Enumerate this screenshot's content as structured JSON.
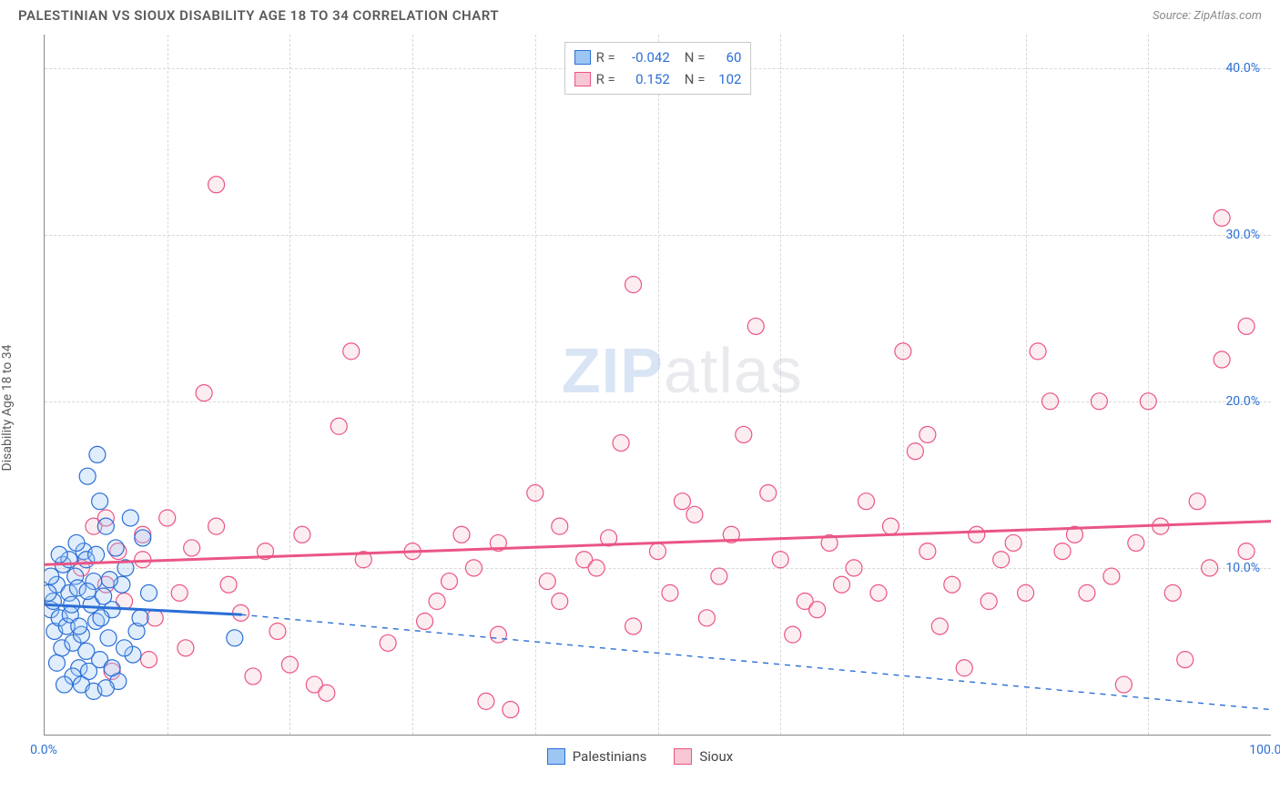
{
  "title": "PALESTINIAN VS SIOUX DISABILITY AGE 18 TO 34 CORRELATION CHART",
  "source": "Source: ZipAtlas.com",
  "y_axis_label": "Disability Age 18 to 34",
  "watermark": {
    "bold": "ZIP",
    "rest": "atlas"
  },
  "chart": {
    "type": "scatter",
    "xlim": [
      0,
      100
    ],
    "ylim": [
      0,
      42
    ],
    "x_ticks": [
      0,
      100
    ],
    "x_tick_labels": [
      "0.0%",
      "100.0%"
    ],
    "y_ticks": [
      10,
      20,
      30,
      40
    ],
    "y_tick_labels": [
      "10.0%",
      "20.0%",
      "30.0%",
      "40.0%"
    ],
    "v_grid": [
      10,
      20,
      30,
      40,
      50,
      60,
      70,
      80,
      90
    ],
    "background_color": "#ffffff",
    "grid_color": "#d8d8d8",
    "axis_color": "#888888",
    "tick_label_color": "#2b6fd6",
    "marker_radius": 9,
    "marker_stroke_width": 1.2,
    "marker_fill_opacity": 0.32,
    "trend_line_width": 3,
    "dash_line_width": 1.4
  },
  "series": [
    {
      "name": "Palestinians",
      "color_fill": "#9ec6f5",
      "color_stroke": "#2b6fd6",
      "trend": {
        "x1": 0,
        "y1": 7.8,
        "x2": 16,
        "y2": 7.2,
        "dash_x2": 100,
        "dash_y2": 1.5
      },
      "points": [
        [
          0.5,
          7.5
        ],
        [
          0.7,
          8.0
        ],
        [
          0.8,
          6.2
        ],
        [
          1.0,
          9.0
        ],
        [
          1.2,
          7.0
        ],
        [
          1.4,
          5.2
        ],
        [
          1.5,
          10.2
        ],
        [
          1.8,
          6.5
        ],
        [
          2.0,
          8.5
        ],
        [
          2.1,
          7.2
        ],
        [
          2.3,
          5.5
        ],
        [
          2.5,
          9.5
        ],
        [
          2.7,
          8.8
        ],
        [
          2.8,
          4.0
        ],
        [
          3.0,
          6.0
        ],
        [
          3.2,
          11.0
        ],
        [
          3.4,
          10.5
        ],
        [
          3.6,
          3.8
        ],
        [
          3.8,
          7.8
        ],
        [
          4.0,
          9.2
        ],
        [
          4.2,
          6.8
        ],
        [
          4.5,
          4.5
        ],
        [
          4.8,
          8.3
        ],
        [
          5.0,
          12.5
        ],
        [
          5.2,
          5.8
        ],
        [
          5.5,
          7.5
        ],
        [
          5.8,
          11.2
        ],
        [
          6.0,
          3.2
        ],
        [
          6.3,
          9.0
        ],
        [
          6.6,
          10.0
        ],
        [
          7.0,
          13.0
        ],
        [
          7.2,
          4.8
        ],
        [
          7.5,
          6.2
        ],
        [
          8.0,
          11.8
        ],
        [
          8.5,
          8.5
        ],
        [
          2.3,
          3.5
        ],
        [
          3.0,
          3.0
        ],
        [
          4.0,
          2.6
        ],
        [
          5.0,
          2.8
        ],
        [
          3.5,
          15.5
        ],
        [
          4.3,
          16.8
        ],
        [
          4.5,
          14.0
        ],
        [
          1.0,
          4.3
        ],
        [
          1.6,
          3.0
        ],
        [
          2.0,
          10.5
        ],
        [
          2.6,
          11.5
        ],
        [
          0.3,
          8.5
        ],
        [
          0.5,
          9.5
        ],
        [
          1.2,
          10.8
        ],
        [
          2.2,
          7.8
        ],
        [
          2.8,
          6.5
        ],
        [
          3.4,
          5.0
        ],
        [
          4.6,
          7.0
        ],
        [
          5.5,
          4.0
        ],
        [
          6.5,
          5.2
        ],
        [
          7.8,
          7.0
        ],
        [
          3.5,
          8.6
        ],
        [
          4.2,
          10.8
        ],
        [
          5.3,
          9.3
        ],
        [
          15.5,
          5.8
        ]
      ]
    },
    {
      "name": "Sioux",
      "color_fill": "#f7c7d3",
      "color_stroke": "#ea5585",
      "trend": {
        "x1": 0,
        "y1": 10.2,
        "x2": 100,
        "y2": 12.8
      },
      "points": [
        [
          3,
          10
        ],
        [
          4,
          12.5
        ],
        [
          5,
          9
        ],
        [
          5,
          13
        ],
        [
          6,
          11
        ],
        [
          6.5,
          8
        ],
        [
          8,
          10.5
        ],
        [
          8,
          12
        ],
        [
          9,
          7
        ],
        [
          10,
          13
        ],
        [
          11,
          8.5
        ],
        [
          12,
          11.2
        ],
        [
          13,
          20.5
        ],
        [
          14,
          12.5
        ],
        [
          14,
          33
        ],
        [
          15,
          9
        ],
        [
          17,
          3.5
        ],
        [
          18,
          11
        ],
        [
          20,
          4.2
        ],
        [
          21,
          12
        ],
        [
          22,
          3
        ],
        [
          23,
          2.5
        ],
        [
          24,
          18.5
        ],
        [
          25,
          23
        ],
        [
          30,
          11
        ],
        [
          32,
          8
        ],
        [
          34,
          12
        ],
        [
          35,
          10
        ],
        [
          36,
          2
        ],
        [
          37,
          11.5
        ],
        [
          38,
          1.5
        ],
        [
          40,
          14.5
        ],
        [
          41,
          9.2
        ],
        [
          42,
          8
        ],
        [
          44,
          10.5
        ],
        [
          45,
          10
        ],
        [
          47,
          17.5
        ],
        [
          48,
          6.5
        ],
        [
          48,
          27
        ],
        [
          50,
          11
        ],
        [
          51,
          8.5
        ],
        [
          52,
          14
        ],
        [
          54,
          7
        ],
        [
          55,
          9.5
        ],
        [
          56,
          12
        ],
        [
          57,
          18
        ],
        [
          58,
          24.5
        ],
        [
          59,
          14.5
        ],
        [
          60,
          10.5
        ],
        [
          61,
          6
        ],
        [
          62,
          8
        ],
        [
          64,
          11.5
        ],
        [
          65,
          9
        ],
        [
          66,
          10
        ],
        [
          67,
          14
        ],
        [
          68,
          8.5
        ],
        [
          69,
          12.5
        ],
        [
          70,
          23
        ],
        [
          71,
          17
        ],
        [
          72,
          11
        ],
        [
          72,
          18
        ],
        [
          74,
          9
        ],
        [
          75,
          4
        ],
        [
          76,
          12
        ],
        [
          77,
          8
        ],
        [
          78,
          10.5
        ],
        [
          79,
          11.5
        ],
        [
          80,
          8.5
        ],
        [
          81,
          23
        ],
        [
          82,
          20
        ],
        [
          83,
          11
        ],
        [
          84,
          12
        ],
        [
          85,
          8.5
        ],
        [
          86,
          20
        ],
        [
          87,
          9.5
        ],
        [
          88,
          3
        ],
        [
          89,
          11.5
        ],
        [
          90,
          20
        ],
        [
          91,
          12.5
        ],
        [
          92,
          8.5
        ],
        [
          93,
          4.5
        ],
        [
          94,
          14
        ],
        [
          95,
          10
        ],
        [
          96,
          22.5
        ],
        [
          96,
          31
        ],
        [
          98,
          11
        ],
        [
          98,
          24.5
        ],
        [
          37,
          6
        ],
        [
          42,
          12.5
        ],
        [
          28,
          5.5
        ],
        [
          31,
          6.8
        ],
        [
          16,
          7.3
        ],
        [
          19,
          6.2
        ],
        [
          26,
          10.5
        ],
        [
          33,
          9.2
        ],
        [
          46,
          11.8
        ],
        [
          53,
          13.2
        ],
        [
          63,
          7.5
        ],
        [
          73,
          6.5
        ],
        [
          5.5,
          3.8
        ],
        [
          8.5,
          4.5
        ],
        [
          11.5,
          5.2
        ]
      ]
    }
  ],
  "correlation_box": {
    "rows": [
      {
        "swatch_fill": "#9ec6f5",
        "swatch_stroke": "#2b6fd6",
        "r_label": "R =",
        "r_val": "-0.042",
        "n_label": "N =",
        "n_val": "60"
      },
      {
        "swatch_fill": "#f7c7d3",
        "swatch_stroke": "#ea5585",
        "r_label": "R =",
        "r_val": "0.152",
        "n_label": "N =",
        "n_val": "102"
      }
    ]
  },
  "bottom_legend": [
    {
      "swatch_fill": "#9ec6f5",
      "swatch_stroke": "#2b6fd6",
      "label": "Palestinians"
    },
    {
      "swatch_fill": "#f7c7d3",
      "swatch_stroke": "#ea5585",
      "label": "Sioux"
    }
  ]
}
